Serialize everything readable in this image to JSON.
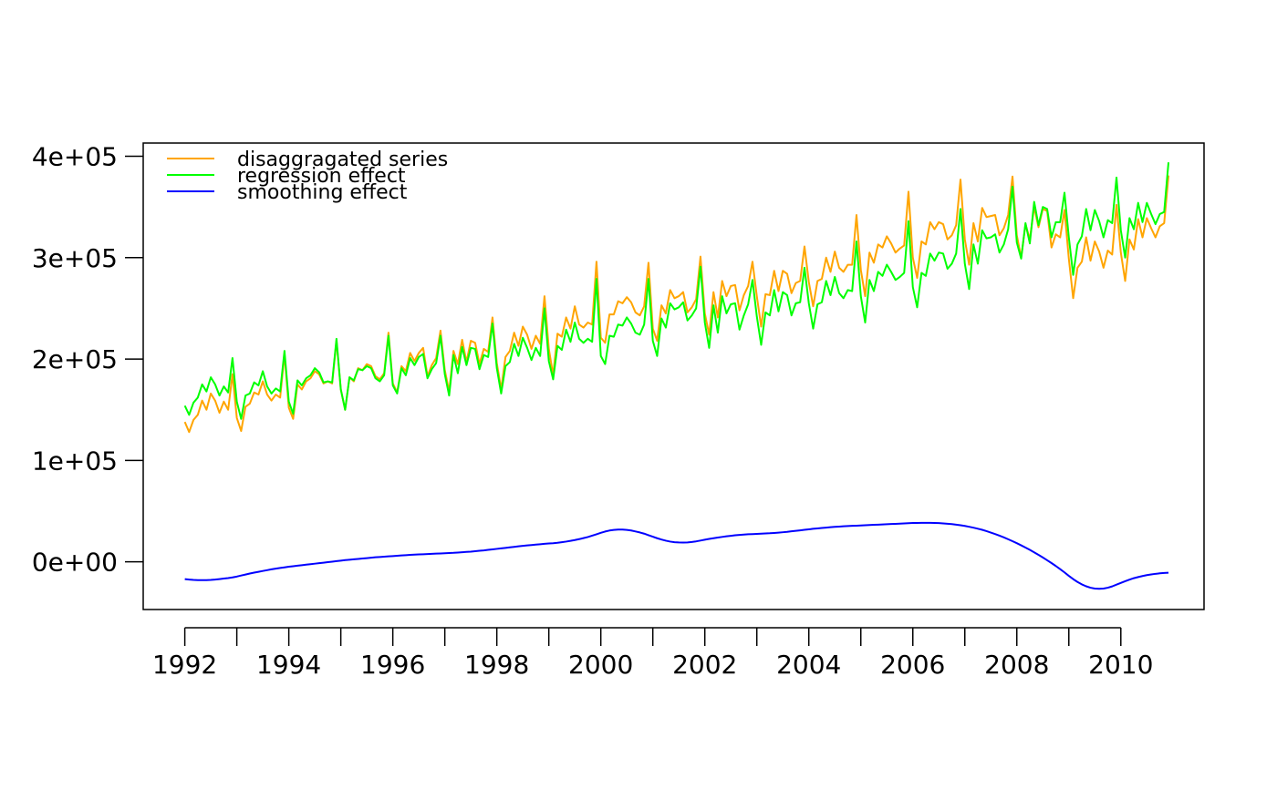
{
  "chart_data": {
    "type": "line",
    "title": "",
    "xlabel": "",
    "ylabel": "",
    "xlim": [
      1991.2,
      2011.6
    ],
    "ylim": [
      -47000,
      413000
    ],
    "x_ticks": [
      1992,
      1993,
      1994,
      1995,
      1996,
      1997,
      1998,
      1999,
      2000,
      2001,
      2002,
      2003,
      2004,
      2005,
      2006,
      2007,
      2008,
      2009,
      2010
    ],
    "x_tick_labels": [
      "1992",
      "1994",
      "1996",
      "1998",
      "2000",
      "2002",
      "2004",
      "2006",
      "2008",
      "2010"
    ],
    "y_ticks": [
      0,
      100000,
      200000,
      300000,
      400000
    ],
    "y_tick_labels": [
      "0e+00",
      "1e+05",
      "2e+05",
      "3e+05",
      "4e+05"
    ],
    "grid": false,
    "legend_position": "top-left",
    "x_start": 1992.0,
    "x_step_months": 1,
    "series": [
      {
        "name": "disaggragated series",
        "color": "#FFA500",
        "values": [
          138000,
          128000,
          140000,
          145000,
          159000,
          150000,
          166000,
          159000,
          147000,
          158000,
          150000,
          185000,
          142000,
          129000,
          153000,
          156000,
          167000,
          165000,
          178000,
          165000,
          159000,
          165000,
          162000,
          205000,
          152000,
          141000,
          175000,
          170000,
          178000,
          181000,
          188000,
          185000,
          176000,
          178000,
          176000,
          218000,
          170000,
          150000,
          182000,
          178000,
          191000,
          189000,
          195000,
          193000,
          183000,
          180000,
          186000,
          226000,
          176000,
          167000,
          193000,
          188000,
          206000,
          198000,
          206000,
          211000,
          183000,
          194000,
          201000,
          228000,
          189000,
          168000,
          208000,
          195000,
          219000,
          197000,
          218000,
          216000,
          195000,
          210000,
          207000,
          241000,
          196000,
          170000,
          202000,
          208000,
          226000,
          213000,
          232000,
          224000,
          210000,
          223000,
          215000,
          262000,
          210000,
          184000,
          225000,
          222000,
          241000,
          230000,
          252000,
          234000,
          231000,
          236000,
          234000,
          296000,
          221000,
          216000,
          244000,
          244000,
          257000,
          255000,
          261000,
          256000,
          246000,
          243000,
          252000,
          295000,
          230000,
          218000,
          253000,
          245000,
          268000,
          260000,
          262000,
          266000,
          246000,
          251000,
          259000,
          301000,
          245000,
          224000,
          266000,
          241000,
          277000,
          262000,
          272000,
          273000,
          248000,
          263000,
          272000,
          296000,
          262000,
          232000,
          264000,
          263000,
          287000,
          267000,
          287000,
          284000,
          265000,
          275000,
          277000,
          311000,
          276000,
          252000,
          277000,
          279000,
          300000,
          286000,
          306000,
          290000,
          286000,
          293000,
          293000,
          342000,
          288000,
          262000,
          305000,
          295000,
          313000,
          310000,
          321000,
          314000,
          305000,
          309000,
          312000,
          365000,
          300000,
          280000,
          316000,
          313000,
          335000,
          328000,
          335000,
          333000,
          318000,
          322000,
          332000,
          377000,
          318000,
          293000,
          334000,
          316000,
          349000,
          340000,
          341000,
          342000,
          322000,
          329000,
          342000,
          380000,
          322000,
          300000,
          333000,
          318000,
          350000,
          330000,
          348000,
          346000,
          310000,
          323000,
          320000,
          347000,
          299000,
          260000,
          290000,
          296000,
          320000,
          297000,
          316000,
          306000,
          290000,
          307000,
          303000,
          352000,
          305000,
          277000,
          318000,
          308000,
          338000,
          320000,
          339000,
          329000,
          320000,
          331000,
          334000,
          381000
        ]
      },
      {
        "name": "regression effect",
        "color": "#00FF00",
        "values": [
          154000,
          145000,
          157000,
          162000,
          175000,
          168000,
          182000,
          175000,
          164000,
          173000,
          167000,
          201000,
          158000,
          141000,
          164000,
          166000,
          177000,
          174000,
          188000,
          173000,
          166000,
          171000,
          168000,
          208000,
          158000,
          146000,
          179000,
          174000,
          181000,
          184000,
          191000,
          187000,
          177000,
          178000,
          177000,
          220000,
          170000,
          150000,
          182000,
          179000,
          190000,
          189000,
          193000,
          191000,
          181000,
          178000,
          184000,
          223000,
          174000,
          166000,
          191000,
          184000,
          201000,
          194000,
          202000,
          205000,
          181000,
          190000,
          196000,
          223000,
          185000,
          164000,
          204000,
          186000,
          212000,
          194000,
          211000,
          210000,
          190000,
          204000,
          202000,
          235000,
          191000,
          166000,
          193000,
          197000,
          215000,
          203000,
          221000,
          211000,
          199000,
          211000,
          203000,
          250000,
          198000,
          180000,
          213000,
          209000,
          229000,
          217000,
          236000,
          220000,
          216000,
          220000,
          217000,
          279000,
          203000,
          195000,
          223000,
          222000,
          234000,
          233000,
          241000,
          235000,
          226000,
          224000,
          234000,
          279000,
          218000,
          203000,
          240000,
          231000,
          255000,
          249000,
          251000,
          256000,
          238000,
          243000,
          250000,
          291000,
          236000,
          211000,
          253000,
          226000,
          262000,
          245000,
          254000,
          255000,
          229000,
          243000,
          254000,
          278000,
          242000,
          214000,
          246000,
          243000,
          268000,
          247000,
          266000,
          263000,
          243000,
          255000,
          256000,
          290000,
          255000,
          230000,
          254000,
          256000,
          277000,
          263000,
          281000,
          265000,
          260000,
          268000,
          267000,
          316000,
          262000,
          236000,
          278000,
          267000,
          286000,
          282000,
          293000,
          286000,
          278000,
          281000,
          285000,
          336000,
          271000,
          251000,
          285000,
          282000,
          304000,
          297000,
          305000,
          304000,
          289000,
          294000,
          304000,
          348000,
          294000,
          269000,
          313000,
          294000,
          327000,
          319000,
          320000,
          323000,
          305000,
          313000,
          328000,
          370000,
          315000,
          299000,
          334000,
          314000,
          355000,
          332000,
          350000,
          348000,
          320000,
          335000,
          335000,
          364000,
          320000,
          283000,
          313000,
          321000,
          348000,
          327000,
          347000,
          336000,
          320000,
          337000,
          334000,
          379000,
          327000,
          300000,
          339000,
          328000,
          354000,
          335000,
          354000,
          343000,
          333000,
          343000,
          345000,
          394000
        ]
      },
      {
        "name": "smoothing effect",
        "color": "#0000FF",
        "values": [
          -17000,
          -17500,
          -17800,
          -18000,
          -18000,
          -18000,
          -17800,
          -17500,
          -17000,
          -16500,
          -16000,
          -15300,
          -14500,
          -13500,
          -12500,
          -11500,
          -10600,
          -9800,
          -9000,
          -8200,
          -7400,
          -6700,
          -6000,
          -5400,
          -4800,
          -4300,
          -3800,
          -3300,
          -2800,
          -2300,
          -1800,
          -1300,
          -800,
          -300,
          200,
          700,
          1200,
          1700,
          2100,
          2500,
          2900,
          3300,
          3700,
          4100,
          4500,
          4800,
          5100,
          5400,
          5700,
          6000,
          6300,
          6600,
          6900,
          7100,
          7300,
          7500,
          7700,
          7900,
          8100,
          8300,
          8500,
          8700,
          8900,
          9200,
          9500,
          9800,
          10100,
          10500,
          10900,
          11300,
          11800,
          12300,
          12800,
          13300,
          13800,
          14300,
          14800,
          15300,
          15800,
          16200,
          16600,
          17000,
          17400,
          17800,
          18100,
          18400,
          18800,
          19400,
          20000,
          20700,
          21500,
          22400,
          23400,
          24500,
          25800,
          27200,
          28600,
          29900,
          30900,
          31500,
          31800,
          31800,
          31500,
          30900,
          30000,
          29000,
          27800,
          26300,
          24800,
          23300,
          22000,
          20900,
          20000,
          19400,
          19100,
          19000,
          19200,
          19600,
          20200,
          21000,
          21800,
          22600,
          23300,
          24000,
          24600,
          25200,
          25700,
          26200,
          26600,
          26900,
          27200,
          27400,
          27600,
          27800,
          28000,
          28200,
          28500,
          28800,
          29200,
          29600,
          30100,
          30600,
          31100,
          31600,
          32100,
          32600,
          33000,
          33400,
          33800,
          34200,
          34500,
          34800,
          35100,
          35300,
          35500,
          35700,
          35900,
          36100,
          36300,
          36500,
          36700,
          36900,
          37100,
          37300,
          37500,
          37700,
          37900,
          38100,
          38300,
          38400,
          38500,
          38500,
          38500,
          38400,
          38200,
          37900,
          37600,
          37200,
          36700,
          36100,
          35400,
          34600,
          33700,
          32700,
          31600,
          30300,
          28900,
          27400,
          25800,
          24100,
          22300,
          20400,
          18400,
          16300,
          14100,
          11800,
          9400,
          6900,
          4300,
          1600,
          -1200,
          -4100,
          -7200,
          -10400,
          -13800,
          -17000,
          -19800,
          -22200,
          -24100,
          -25500,
          -26300,
          -26600,
          -26300,
          -25500,
          -24200,
          -22500,
          -20800,
          -19100,
          -17500,
          -16100,
          -15000,
          -14000,
          -13100,
          -12400,
          -11800,
          -11300,
          -10900,
          -10700
        ]
      }
    ]
  }
}
